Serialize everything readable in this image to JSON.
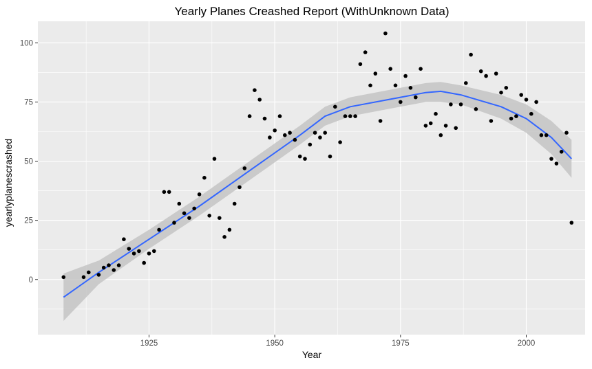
{
  "chart_data": {
    "type": "scatter",
    "title": "Yearly Planes Creashed Report (WithUnknown Data)",
    "xlabel": "Year",
    "ylabel": "yearlyplanescrashed",
    "xlim": [
      1902.9,
      2011.7
    ],
    "ylim": [
      -23.3,
      109.1
    ],
    "x_ticks": [
      1925,
      1950,
      1975,
      2000
    ],
    "x_tick_labels": [
      "1925",
      "1950",
      "1975",
      "2000"
    ],
    "x_minor_ticks": [
      1912.5,
      1937.5,
      1962.5,
      1987.5
    ],
    "y_ticks": [
      0,
      25,
      50,
      75,
      100
    ],
    "y_tick_labels": [
      "0",
      "25",
      "50",
      "75",
      "100"
    ],
    "y_minor_ticks": [
      -12.5,
      12.5,
      37.5,
      62.5,
      87.5
    ],
    "grid": true,
    "colors": {
      "panel": "#ebebeb",
      "grid": "#ffffff",
      "point": "#000000",
      "smooth_line": "#3366ff",
      "confidence_band": "#c4c4c4"
    },
    "points": [
      {
        "x": 1908,
        "y": 1
      },
      {
        "x": 1912,
        "y": 1
      },
      {
        "x": 1913,
        "y": 3
      },
      {
        "x": 1915,
        "y": 2
      },
      {
        "x": 1916,
        "y": 5
      },
      {
        "x": 1917,
        "y": 6
      },
      {
        "x": 1918,
        "y": 4
      },
      {
        "x": 1919,
        "y": 6
      },
      {
        "x": 1920,
        "y": 17
      },
      {
        "x": 1921,
        "y": 13
      },
      {
        "x": 1922,
        "y": 11
      },
      {
        "x": 1923,
        "y": 12
      },
      {
        "x": 1924,
        "y": 7
      },
      {
        "x": 1925,
        "y": 11
      },
      {
        "x": 1926,
        "y": 12
      },
      {
        "x": 1927,
        "y": 21
      },
      {
        "x": 1928,
        "y": 37
      },
      {
        "x": 1929,
        "y": 37
      },
      {
        "x": 1930,
        "y": 24
      },
      {
        "x": 1931,
        "y": 32
      },
      {
        "x": 1932,
        "y": 28
      },
      {
        "x": 1933,
        "y": 26
      },
      {
        "x": 1934,
        "y": 30
      },
      {
        "x": 1935,
        "y": 36
      },
      {
        "x": 1936,
        "y": 43
      },
      {
        "x": 1937,
        "y": 27
      },
      {
        "x": 1938,
        "y": 51
      },
      {
        "x": 1939,
        "y": 26
      },
      {
        "x": 1940,
        "y": 18
      },
      {
        "x": 1941,
        "y": 21
      },
      {
        "x": 1942,
        "y": 32
      },
      {
        "x": 1943,
        "y": 39
      },
      {
        "x": 1944,
        "y": 47
      },
      {
        "x": 1945,
        "y": 69
      },
      {
        "x": 1946,
        "y": 80
      },
      {
        "x": 1947,
        "y": 76
      },
      {
        "x": 1948,
        "y": 68
      },
      {
        "x": 1949,
        "y": 60
      },
      {
        "x": 1950,
        "y": 63
      },
      {
        "x": 1951,
        "y": 69
      },
      {
        "x": 1952,
        "y": 61
      },
      {
        "x": 1953,
        "y": 62
      },
      {
        "x": 1954,
        "y": 59
      },
      {
        "x": 1955,
        "y": 52
      },
      {
        "x": 1956,
        "y": 51
      },
      {
        "x": 1957,
        "y": 57
      },
      {
        "x": 1958,
        "y": 62
      },
      {
        "x": 1959,
        "y": 60
      },
      {
        "x": 1960,
        "y": 62
      },
      {
        "x": 1961,
        "y": 52
      },
      {
        "x": 1962,
        "y": 73
      },
      {
        "x": 1963,
        "y": 58
      },
      {
        "x": 1964,
        "y": 69
      },
      {
        "x": 1965,
        "y": 69
      },
      {
        "x": 1966,
        "y": 69
      },
      {
        "x": 1967,
        "y": 91
      },
      {
        "x": 1968,
        "y": 96
      },
      {
        "x": 1969,
        "y": 82
      },
      {
        "x": 1970,
        "y": 87
      },
      {
        "x": 1971,
        "y": 67
      },
      {
        "x": 1972,
        "y": 104
      },
      {
        "x": 1973,
        "y": 89
      },
      {
        "x": 1974,
        "y": 82
      },
      {
        "x": 1975,
        "y": 75
      },
      {
        "x": 1976,
        "y": 86
      },
      {
        "x": 1977,
        "y": 81
      },
      {
        "x": 1978,
        "y": 77
      },
      {
        "x": 1979,
        "y": 89
      },
      {
        "x": 1980,
        "y": 65
      },
      {
        "x": 1981,
        "y": 66
      },
      {
        "x": 1982,
        "y": 70
      },
      {
        "x": 1983,
        "y": 61
      },
      {
        "x": 1984,
        "y": 65
      },
      {
        "x": 1985,
        "y": 74
      },
      {
        "x": 1986,
        "y": 64
      },
      {
        "x": 1987,
        "y": 74
      },
      {
        "x": 1988,
        "y": 83
      },
      {
        "x": 1989,
        "y": 95
      },
      {
        "x": 1990,
        "y": 72
      },
      {
        "x": 1991,
        "y": 88
      },
      {
        "x": 1992,
        "y": 86
      },
      {
        "x": 1993,
        "y": 67
      },
      {
        "x": 1994,
        "y": 87
      },
      {
        "x": 1995,
        "y": 79
      },
      {
        "x": 1996,
        "y": 81
      },
      {
        "x": 1997,
        "y": 68
      },
      {
        "x": 1998,
        "y": 69
      },
      {
        "x": 1999,
        "y": 78
      },
      {
        "x": 2000,
        "y": 76
      },
      {
        "x": 2001,
        "y": 70
      },
      {
        "x": 2002,
        "y": 75
      },
      {
        "x": 2003,
        "y": 61
      },
      {
        "x": 2004,
        "y": 61
      },
      {
        "x": 2005,
        "y": 51
      },
      {
        "x": 2006,
        "y": 49
      },
      {
        "x": 2007,
        "y": 54
      },
      {
        "x": 2008,
        "y": 62
      },
      {
        "x": 2009,
        "y": 24
      }
    ],
    "smooth": {
      "method": "loess",
      "x": [
        1908,
        1915,
        1925,
        1935,
        1945,
        1955,
        1960,
        1965,
        1975,
        1980,
        1983,
        1987,
        1995,
        2000,
        2005,
        2009
      ],
      "y": [
        -7.5,
        3,
        17,
        31,
        46,
        61,
        69,
        73,
        77,
        79,
        79.5,
        78,
        73,
        68,
        60,
        51
      ],
      "lower": [
        -17.5,
        -2,
        13,
        27,
        42,
        57,
        65,
        69,
        73,
        75,
        75,
        74,
        68,
        62,
        53,
        43
      ],
      "upper": [
        2.5,
        8,
        21,
        35,
        50,
        65,
        73,
        77,
        81,
        83,
        83.5,
        82,
        78,
        74,
        67,
        59
      ]
    }
  }
}
